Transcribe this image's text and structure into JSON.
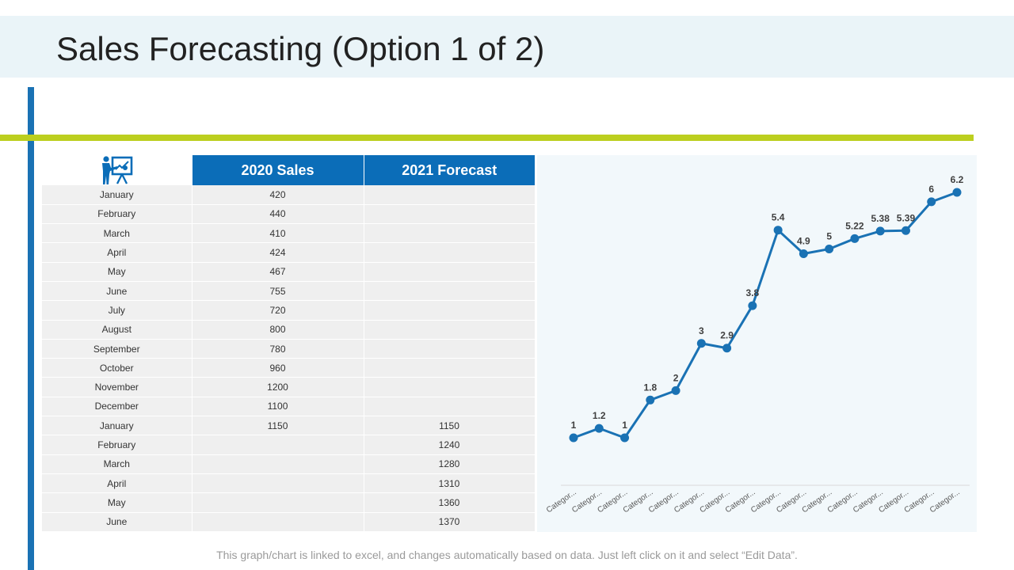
{
  "slide": {
    "title": "Sales Forecasting (Option 1 of 2)",
    "footnote": "This graph/chart is linked to excel, and changes automatically based on data. Just left click on it and select “Edit Data”."
  },
  "table": {
    "icon": "presentation-board-icon",
    "headers": [
      "2020 Sales",
      "2021 Forecast"
    ],
    "rows": [
      {
        "month": "January",
        "sales": "420",
        "forecast": ""
      },
      {
        "month": "February",
        "sales": "440",
        "forecast": ""
      },
      {
        "month": "March",
        "sales": "410",
        "forecast": ""
      },
      {
        "month": "April",
        "sales": "424",
        "forecast": ""
      },
      {
        "month": "May",
        "sales": "467",
        "forecast": ""
      },
      {
        "month": "June",
        "sales": "755",
        "forecast": ""
      },
      {
        "month": "July",
        "sales": "720",
        "forecast": ""
      },
      {
        "month": "August",
        "sales": "800",
        "forecast": ""
      },
      {
        "month": "September",
        "sales": "780",
        "forecast": ""
      },
      {
        "month": "October",
        "sales": "960",
        "forecast": ""
      },
      {
        "month": "November",
        "sales": "1200",
        "forecast": ""
      },
      {
        "month": "December",
        "sales": "1100",
        "forecast": ""
      },
      {
        "month": "January",
        "sales": "1150",
        "forecast": "1150"
      },
      {
        "month": "February",
        "sales": "",
        "forecast": "1240"
      },
      {
        "month": "March",
        "sales": "",
        "forecast": "1280"
      },
      {
        "month": "April",
        "sales": "",
        "forecast": "1310"
      },
      {
        "month": "May",
        "sales": "",
        "forecast": "1360"
      },
      {
        "month": "June",
        "sales": "",
        "forecast": "1370"
      }
    ]
  },
  "colors": {
    "accent_blue": "#0b6db8",
    "line_blue": "#1a72b4",
    "accent_green": "#bccf1f"
  },
  "chart_data": {
    "type": "line",
    "title": "",
    "xlabel": "",
    "ylabel": "",
    "categories": [
      "Categor...",
      "Categor...",
      "Categor...",
      "Categor...",
      "Categor...",
      "Categor...",
      "Categor...",
      "Categor...",
      "Categor...",
      "Categor...",
      "Categor...",
      "Categor...",
      "Categor...",
      "Categor...",
      "Categor...",
      "Categor..."
    ],
    "values": [
      1,
      1.2,
      1,
      1.8,
      2,
      3,
      2.9,
      3.8,
      5.4,
      4.9,
      5,
      5.22,
      5.38,
      5.39,
      6,
      6.2
    ],
    "data_labels": [
      "1",
      "1.2",
      "1",
      "1.8",
      "2",
      "3",
      "2.9",
      "3.8",
      "5.4",
      "4.9",
      "5",
      "5.22",
      "5.38",
      "5.39",
      "6",
      "6.2"
    ],
    "ylim": [
      0,
      7
    ],
    "grid": false,
    "legend": "none"
  }
}
